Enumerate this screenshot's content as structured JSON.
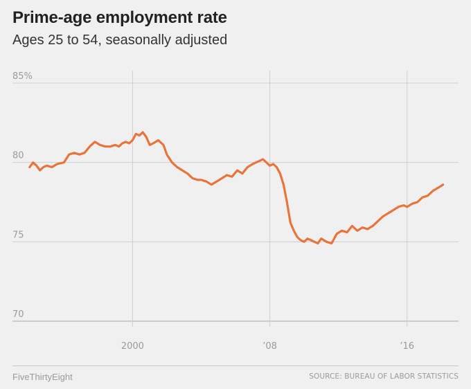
{
  "title": "Prime-age employment rate",
  "subtitle": "Ages 25 to 54, seasonally adjusted",
  "footer": {
    "brand": "FiveThirtyEight",
    "source": "SOURCE: BUREAU OF LABOR STATISTICS"
  },
  "colors": {
    "background": "#f0f0f0",
    "line": "#e8743b",
    "grid": "#cfcfcf",
    "text": "#222222",
    "muted": "#9a9a9a"
  },
  "chart_data": {
    "type": "line",
    "title": "Prime-age employment rate",
    "subtitle": "Ages 25 to 54, seasonally adjusted",
    "xlabel": "",
    "ylabel": "",
    "xlim": [
      1993,
      2019
    ],
    "ylim": [
      70,
      85
    ],
    "grid": true,
    "y_ticks": [
      {
        "value": 85,
        "label": "85%"
      },
      {
        "value": 80,
        "label": "80"
      },
      {
        "value": 75,
        "label": "75"
      },
      {
        "value": 70,
        "label": "70"
      }
    ],
    "x_ticks": [
      {
        "value": 2000,
        "label": "2000"
      },
      {
        "value": 2008,
        "label": "’08"
      },
      {
        "value": 2016,
        "label": "’16"
      }
    ],
    "series": [
      {
        "color": "#e8743b",
        "x": [
          1994.0,
          1994.2,
          1994.4,
          1994.6,
          1994.8,
          1995.0,
          1995.3,
          1995.6,
          1996.0,
          1996.3,
          1996.6,
          1996.9,
          1997.2,
          1997.5,
          1997.8,
          1998.1,
          1998.4,
          1998.7,
          1999.0,
          1999.2,
          1999.4,
          1999.6,
          1999.8,
          2000.0,
          2000.2,
          2000.4,
          2000.6,
          2000.8,
          2001.0,
          2001.2,
          2001.5,
          2001.8,
          2002.0,
          2002.3,
          2002.6,
          2002.9,
          2003.2,
          2003.5,
          2003.8,
          2004.0,
          2004.3,
          2004.6,
          2004.9,
          2005.2,
          2005.5,
          2005.8,
          2006.1,
          2006.4,
          2006.7,
          2007.0,
          2007.2,
          2007.4,
          2007.6,
          2007.8,
          2008.0,
          2008.2,
          2008.4,
          2008.6,
          2008.8,
          2009.0,
          2009.2,
          2009.4,
          2009.6,
          2009.8,
          2010.0,
          2010.2,
          2010.4,
          2010.6,
          2010.8,
          2011.0,
          2011.3,
          2011.6,
          2011.9,
          2012.2,
          2012.5,
          2012.8,
          2013.1,
          2013.4,
          2013.7,
          2014.0,
          2014.3,
          2014.6,
          2014.9,
          2015.2,
          2015.5,
          2015.8,
          2016.0,
          2016.3,
          2016.6,
          2016.9,
          2017.2,
          2017.5,
          2017.8,
          2018.1
        ],
        "values": [
          79.7,
          80.0,
          79.8,
          79.5,
          79.7,
          79.8,
          79.7,
          79.9,
          80.0,
          80.5,
          80.6,
          80.5,
          80.6,
          81.0,
          81.3,
          81.1,
          81.0,
          81.0,
          81.1,
          81.0,
          81.2,
          81.3,
          81.2,
          81.4,
          81.8,
          81.7,
          81.9,
          81.6,
          81.1,
          81.2,
          81.4,
          81.1,
          80.5,
          80.0,
          79.7,
          79.5,
          79.3,
          79.0,
          78.9,
          78.9,
          78.8,
          78.6,
          78.8,
          79.0,
          79.2,
          79.1,
          79.5,
          79.3,
          79.7,
          79.9,
          80.0,
          80.1,
          80.2,
          80.0,
          79.8,
          79.9,
          79.7,
          79.3,
          78.6,
          77.5,
          76.2,
          75.7,
          75.3,
          75.1,
          75.0,
          75.2,
          75.1,
          75.0,
          74.9,
          75.2,
          75.0,
          74.9,
          75.5,
          75.7,
          75.6,
          76.0,
          75.7,
          75.9,
          75.8,
          76.0,
          76.3,
          76.6,
          76.8,
          77.0,
          77.2,
          77.3,
          77.2,
          77.4,
          77.5,
          77.8,
          77.9,
          78.2,
          78.4,
          78.6
        ]
      }
    ]
  }
}
